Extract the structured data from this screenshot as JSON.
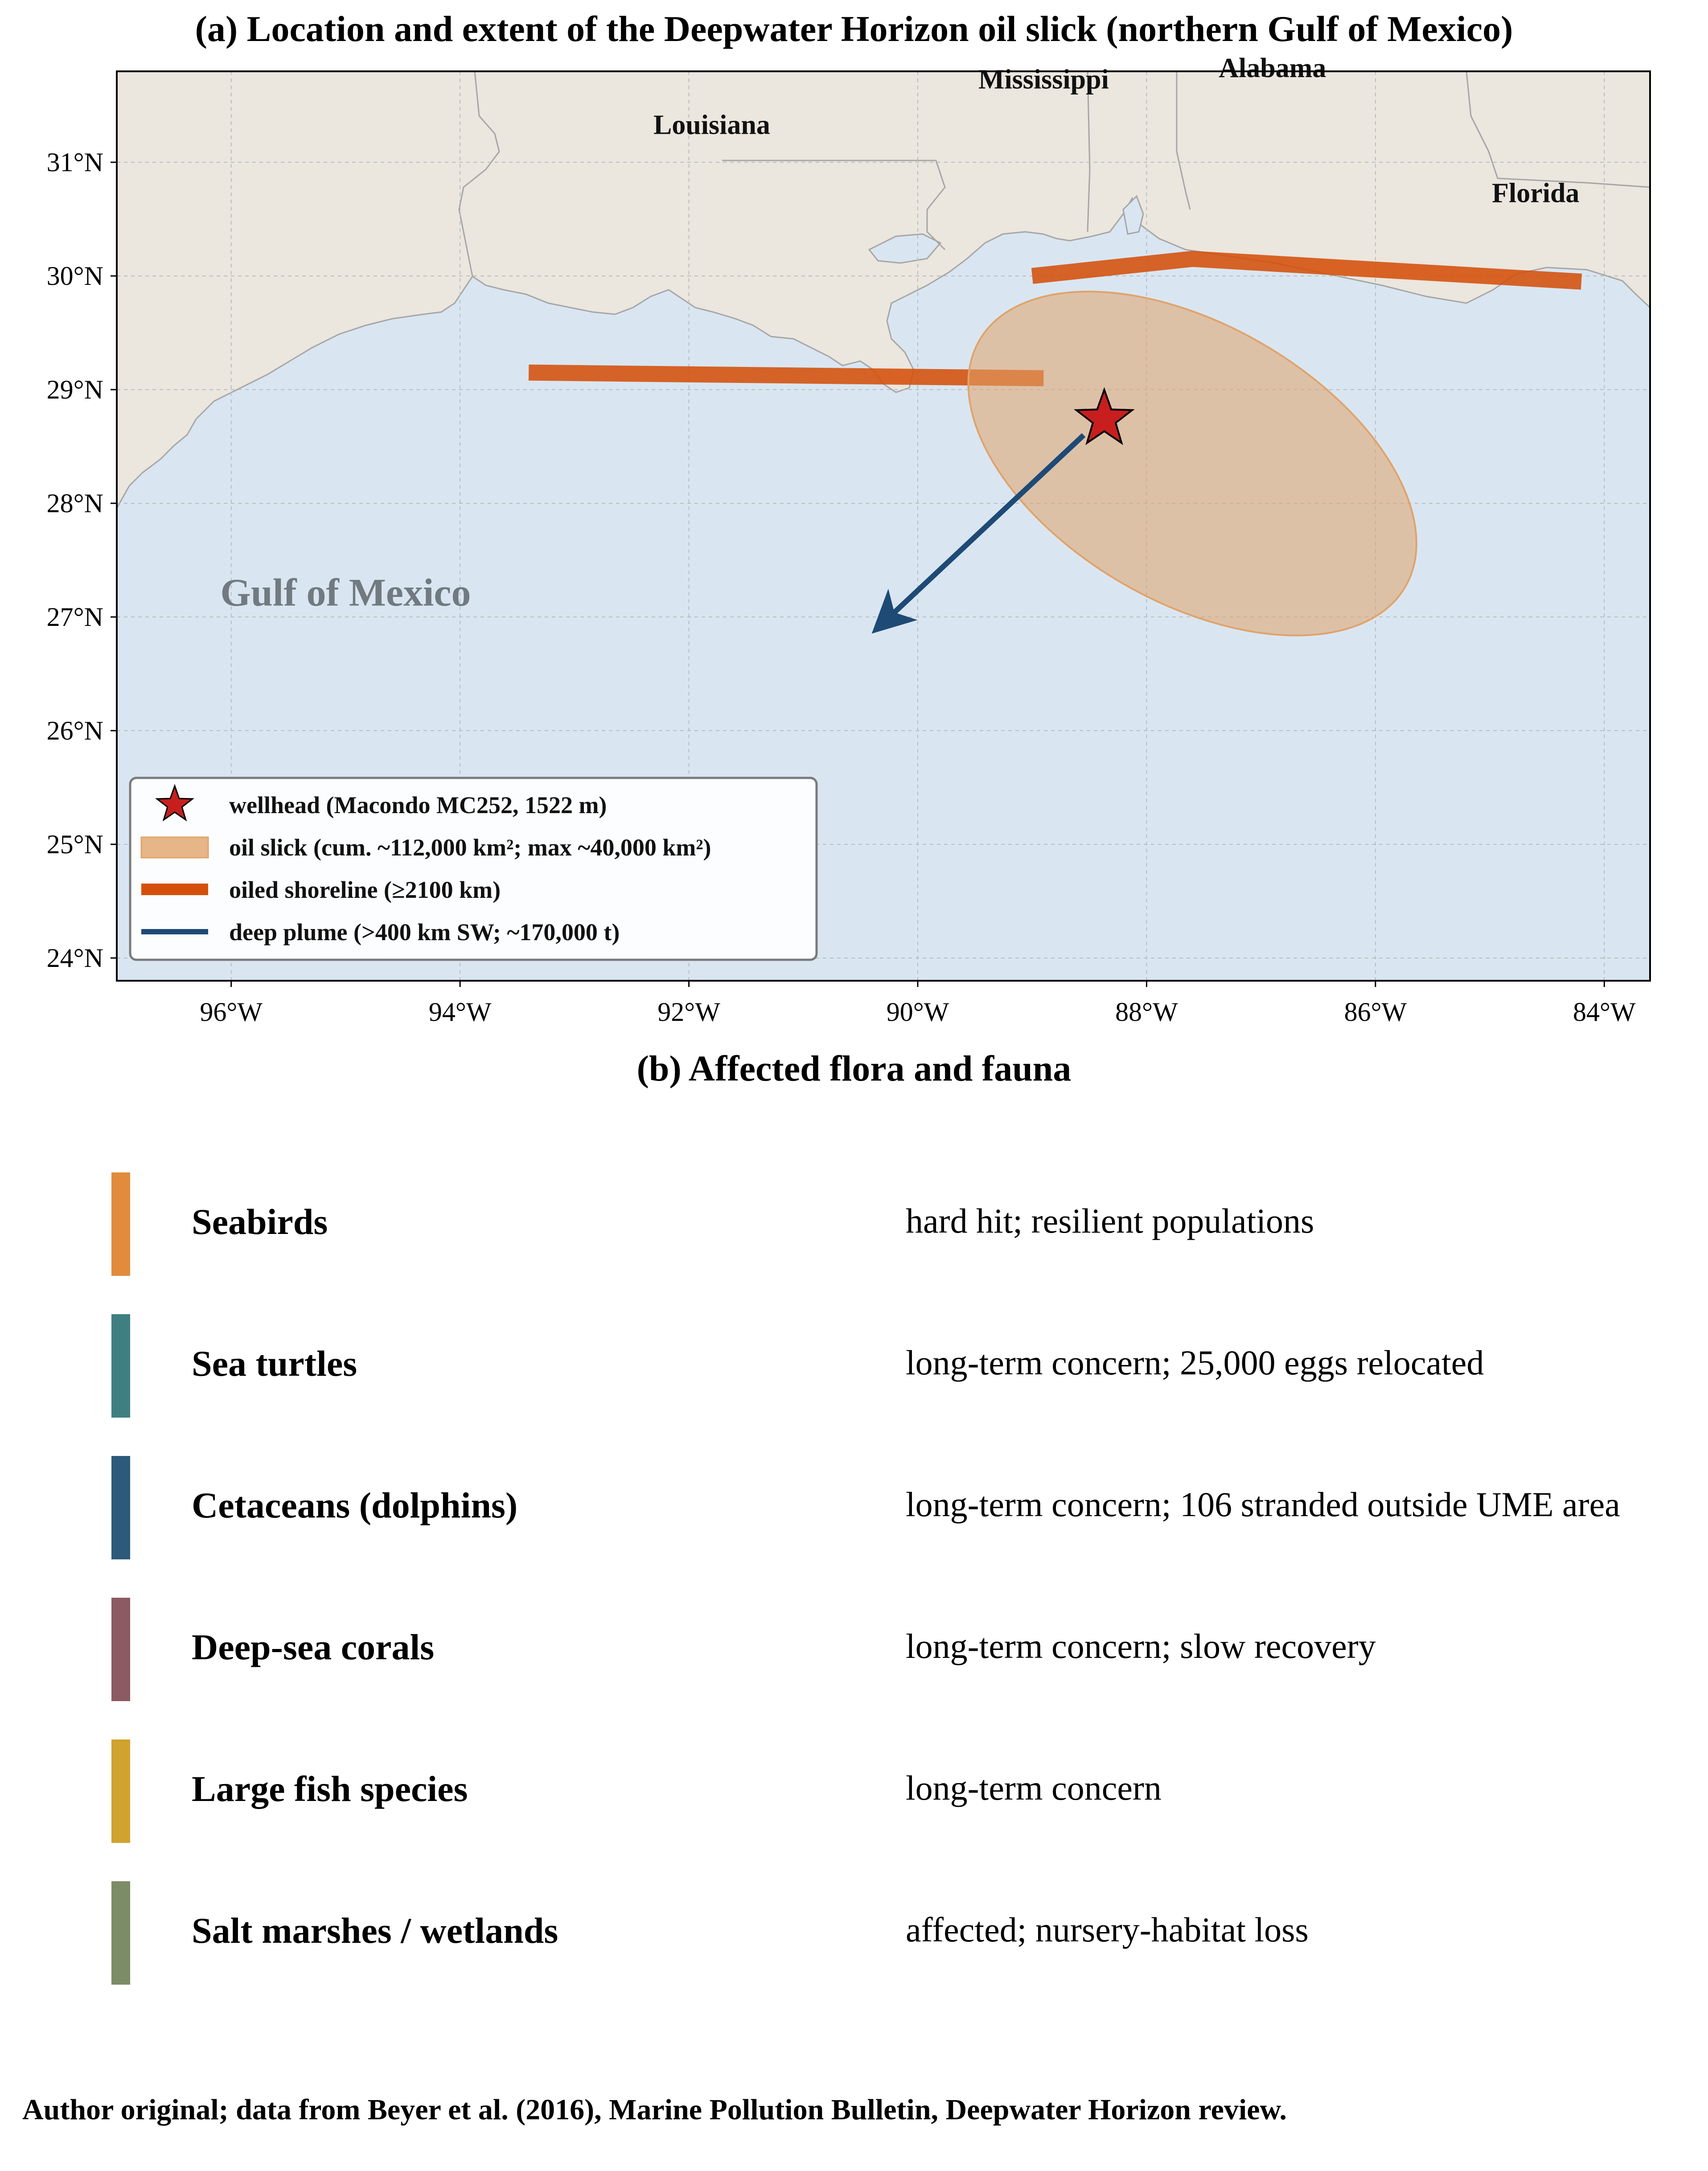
{
  "map": {
    "title": "(a) Location and extent of the Deepwater Horizon oil slick (northern Gulf of Mexico)",
    "extent": {
      "lon_min": -97.0,
      "lon_max": -83.6,
      "lat_min": 23.8,
      "lat_max": 31.8
    },
    "lon_ticks": [
      {
        "value": -96,
        "label": "96°W"
      },
      {
        "value": -94,
        "label": "94°W"
      },
      {
        "value": -92,
        "label": "92°W"
      },
      {
        "value": -90,
        "label": "90°W"
      },
      {
        "value": -88,
        "label": "88°W"
      },
      {
        "value": -86,
        "label": "86°W"
      },
      {
        "value": -84,
        "label": "84°W"
      }
    ],
    "lat_ticks": [
      {
        "value": 31,
        "label": "31°N"
      },
      {
        "value": 30,
        "label": "30°N"
      },
      {
        "value": 29,
        "label": "29°N"
      },
      {
        "value": 28,
        "label": "28°N"
      },
      {
        "value": 27,
        "label": "27°N"
      },
      {
        "value": 26,
        "label": "26°N"
      },
      {
        "value": 25,
        "label": "25°N"
      },
      {
        "value": 24,
        "label": "24°N"
      }
    ],
    "grid": true,
    "colors": {
      "land": "#ebe6de",
      "ocean": "#d9e6f1",
      "border": "#a6a6a6",
      "slick": "#e0a36a",
      "shoreline": "#d4500a",
      "plume": "#1e4a76",
      "wellhead": "#c81e1e"
    },
    "state_labels": [
      {
        "name": "Louisiana",
        "lon": -91.8,
        "lat": 31.25
      },
      {
        "name": "Mississippi",
        "lon": -88.9,
        "lat": 31.65
      },
      {
        "name": "Alabama",
        "lon": -86.9,
        "lat": 31.75
      },
      {
        "name": "Florida",
        "lon": -84.6,
        "lat": 30.65
      }
    ],
    "sea_label": {
      "name": "Gulf of Mexico",
      "lon": -95.0,
      "lat": 27.1
    },
    "wellhead": {
      "lon": -88.37,
      "lat": 28.74
    },
    "oil_slick": {
      "center_lon": -87.6,
      "center_lat": 28.35,
      "semi_axis_lon_deg": 2.15,
      "semi_axis_lat_deg": 1.22,
      "rotation_deg": 30,
      "opacity": 0.55
    },
    "oiled_shoreline": [
      [
        [
          -93.4,
          29.15
        ],
        [
          -88.9,
          29.1
        ]
      ],
      [
        [
          -89.0,
          30.0
        ],
        [
          -87.6,
          30.15
        ],
        [
          -84.2,
          29.95
        ]
      ]
    ],
    "deep_plume": {
      "from": [
        -88.55,
        28.6
      ],
      "to": [
        -90.3,
        26.95
      ]
    },
    "legend": {
      "position": "lower-left",
      "items": [
        {
          "symbol": "star",
          "label": "wellhead (Macondo MC252, 1522 m)"
        },
        {
          "symbol": "patch",
          "label": "oil slick (cum. ~112,000 km²; max ~40,000 km²)"
        },
        {
          "symbol": "thick-line",
          "label": "oiled shoreline (≥2100 km)"
        },
        {
          "symbol": "line",
          "label": "deep plume (>400 km SW; ~170,000 t)"
        }
      ]
    }
  },
  "panel_b": {
    "title": "(b) Affected flora and fauna",
    "items": [
      {
        "name": "Seabirds",
        "status": "hard hit; resilient populations",
        "color": "#e08c3c"
      },
      {
        "name": "Sea turtles",
        "status": "long-term concern; 25,000 eggs relocated",
        "color": "#3f7f82"
      },
      {
        "name": "Cetaceans (dolphins)",
        "status": "long-term concern; 106 stranded outside UME area",
        "color": "#2d5a7a"
      },
      {
        "name": "Deep-sea corals",
        "status": "long-term concern; slow recovery",
        "color": "#8c5a62"
      },
      {
        "name": "Large fish species",
        "status": "long-term concern",
        "color": "#d0a22e"
      },
      {
        "name": "Salt marshes / wetlands",
        "status": "affected; nursery-habitat loss",
        "color": "#7c8c66"
      }
    ]
  },
  "footer": {
    "source": "Author original; data from Beyer et al. (2016), Marine Pollution Bulletin, Deepwater Horizon review."
  }
}
